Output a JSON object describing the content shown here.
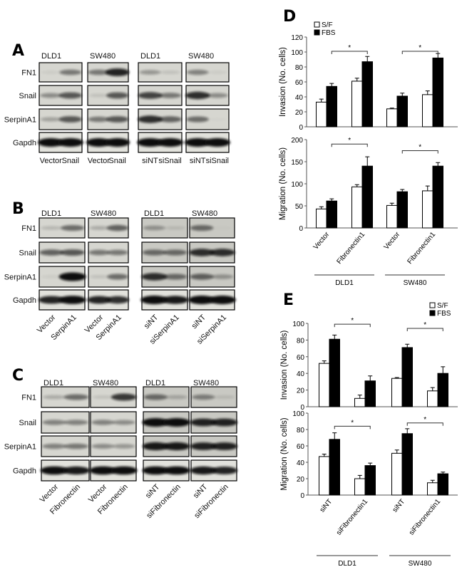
{
  "colors": {
    "sf_fill": "#ffffff",
    "fbs_fill": "#000000",
    "blot_bg": "#d6d6d0",
    "band": "#111111"
  },
  "blots": [
    {
      "letter": "A",
      "rows": [
        "FN1",
        "Snail",
        "SerpinA1",
        "Gapdh"
      ],
      "rotated_labels": false,
      "panels": [
        {
          "cell": "DLD1",
          "lanes": [
            "Vector",
            "Snail"
          ],
          "bands": [
            [
              0.05,
              0.45
            ],
            [
              0.35,
              0.6
            ],
            [
              0.25,
              0.6
            ],
            [
              1,
              1
            ]
          ]
        },
        {
          "cell": "SW480",
          "lanes": [
            "Vector",
            "Snail"
          ],
          "bands": [
            [
              0.45,
              0.85
            ],
            [
              0.1,
              0.6
            ],
            [
              0.45,
              0.6
            ],
            [
              1,
              1
            ]
          ]
        },
        {
          "cell": "DLD1",
          "lanes": [
            "siNT",
            "siSnail"
          ],
          "bands": [
            [
              0.3,
              0.1
            ],
            [
              0.7,
              0.45
            ],
            [
              0.8,
              0.55
            ],
            [
              1,
              1
            ]
          ]
        },
        {
          "cell": "SW480",
          "lanes": [
            "siNT",
            "siSnail"
          ],
          "bands": [
            [
              0.4,
              0.05
            ],
            [
              0.8,
              0.35
            ],
            [
              0.5,
              0.02
            ],
            [
              1,
              1
            ]
          ]
        }
      ]
    },
    {
      "letter": "B",
      "rows": [
        "FN1",
        "Snail",
        "SerpinA1",
        "Gapdh"
      ],
      "rotated_labels": true,
      "panels": [
        {
          "cell": "DLD1",
          "lanes": [
            "Vector",
            "SerpinA1"
          ],
          "bands": [
            [
              0.15,
              0.5
            ],
            [
              0.55,
              0.6
            ],
            [
              0.05,
              1
            ],
            [
              0.85,
              0.95
            ]
          ]
        },
        {
          "cell": "SW480",
          "lanes": [
            "Vector",
            "SerpinA1"
          ],
          "bands": [
            [
              0.2,
              0.55
            ],
            [
              0.45,
              0.45
            ],
            [
              0.1,
              0.5
            ],
            [
              0.85,
              0.8
            ]
          ]
        },
        {
          "cell": "DLD1",
          "lanes": [
            "siNT",
            "siSerpinA1"
          ],
          "bands": [
            [
              0.3,
              0.1
            ],
            [
              0.5,
              0.5
            ],
            [
              0.8,
              0.5
            ],
            [
              1,
              0.9
            ]
          ]
        },
        {
          "cell": "SW480",
          "lanes": [
            "siNT",
            "siSerpinA1"
          ],
          "bands": [
            [
              0.5,
              0.02
            ],
            [
              0.8,
              0.8
            ],
            [
              0.55,
              0.3
            ],
            [
              1,
              1
            ]
          ]
        }
      ]
    },
    {
      "letter": "C",
      "rows": [
        "FN1",
        "Snail",
        "SerpinA1",
        "Gapdh"
      ],
      "rotated_labels": true,
      "panels": [
        {
          "cell": "DLD1",
          "lanes": [
            "Vector",
            "Fibronectin"
          ],
          "bands": [
            [
              0.2,
              0.5
            ],
            [
              0.4,
              0.4
            ],
            [
              0.4,
              0.45
            ],
            [
              0.95,
              0.9
            ]
          ]
        },
        {
          "cell": "SW480",
          "lanes": [
            "Vector",
            "Fibronectin"
          ],
          "bands": [
            [
              0.1,
              0.75
            ],
            [
              0.4,
              0.35
            ],
            [
              0.35,
              0.3
            ],
            [
              0.95,
              0.95
            ]
          ]
        },
        {
          "cell": "DLD1",
          "lanes": [
            "siNT",
            "siFibronectin"
          ],
          "bands": [
            [
              0.5,
              0.2
            ],
            [
              1,
              1
            ],
            [
              0.9,
              0.9
            ],
            [
              0.95,
              0.95
            ]
          ]
        },
        {
          "cell": "SW480",
          "lanes": [
            "siNT",
            "siFibronectin"
          ],
          "bands": [
            [
              0.4,
              0.1
            ],
            [
              0.85,
              0.85
            ],
            [
              0.85,
              0.85
            ],
            [
              0.9,
              0.85
            ]
          ]
        }
      ]
    }
  ],
  "chart_data": [
    {
      "panel": "D",
      "type": "bar",
      "legend": [
        "S/F",
        "FBS"
      ],
      "legend_placement": "top-left",
      "groups": [
        {
          "label": "DLD1",
          "categories": [
            "Vector",
            "Fibronectin1"
          ]
        },
        {
          "label": "SW480",
          "categories": [
            "Vector",
            "Fibronectin1"
          ]
        }
      ],
      "categories": [
        "Vector",
        "Fibronectin1",
        "Vector",
        "Fibronectin1"
      ],
      "subplots": [
        {
          "ylabel": "Invasion  (No. cells)",
          "ylim": [
            0,
            120
          ],
          "yticks": [
            0,
            20,
            40,
            60,
            80,
            100,
            120
          ],
          "series": [
            {
              "name": "S/F",
              "values": [
                33,
                61,
                24,
                43
              ],
              "errors": [
                4,
                4,
                1,
                5
              ]
            },
            {
              "name": "FBS",
              "values": [
                54,
                87,
                41,
                92
              ],
              "errors": [
                4,
                7,
                4,
                6
              ]
            }
          ],
          "significance": [
            {
              "from": 0,
              "to": 1,
              "level": 101,
              "mark": "*"
            },
            {
              "from": 2,
              "to": 3,
              "level": 101,
              "mark": "*"
            }
          ]
        },
        {
          "ylabel": "Migration  (No. cells)",
          "ylim": [
            0,
            200
          ],
          "yticks": [
            0,
            50,
            100,
            150,
            200
          ],
          "series": [
            {
              "name": "S/F",
              "values": [
                43,
                93,
                51,
                84
              ],
              "errors": [
                5,
                5,
                5,
                11
              ]
            },
            {
              "name": "FBS",
              "values": [
                61,
                140,
                82,
                140
              ],
              "errors": [
                5,
                21,
                5,
                8
              ]
            }
          ],
          "significance": [
            {
              "from": 0,
              "to": 1,
              "level": 190,
              "mark": "*"
            },
            {
              "from": 2,
              "to": 3,
              "level": 175,
              "mark": "*"
            }
          ]
        }
      ]
    },
    {
      "panel": "E",
      "type": "bar",
      "legend": [
        "S/F",
        "FBS"
      ],
      "legend_placement": "top-right",
      "groups": [
        {
          "label": "DLD1",
          "categories": [
            "siNT",
            "siFibronectin1"
          ]
        },
        {
          "label": "SW480",
          "categories": [
            "siNT",
            "siFibronectin1"
          ]
        }
      ],
      "categories": [
        "siNT",
        "siFibronectin1",
        "siNT",
        "siFibronectin1"
      ],
      "subplots": [
        {
          "ylabel": "Invasion  (No. cells)",
          "ylim": [
            0,
            100
          ],
          "yticks": [
            0,
            20,
            40,
            60,
            80,
            100
          ],
          "series": [
            {
              "name": "S/F",
              "values": [
                52,
                10,
                34,
                19
              ],
              "errors": [
                3,
                4,
                1,
                4
              ]
            },
            {
              "name": "FBS",
              "values": [
                81,
                31,
                71,
                40
              ],
              "errors": [
                5,
                6,
                4,
                8
              ]
            }
          ],
          "significance": [
            {
              "from": 0,
              "to": 1,
              "level": 99,
              "mark": "*"
            },
            {
              "from": 2,
              "to": 3,
              "level": 94,
              "mark": "*"
            }
          ]
        },
        {
          "ylabel": "Migration  (No. cells)",
          "ylim": [
            0,
            100
          ],
          "yticks": [
            0,
            20,
            40,
            60,
            80,
            100
          ],
          "series": [
            {
              "name": "S/F",
              "values": [
                47,
                20,
                51,
                15
              ],
              "errors": [
                3,
                4,
                4,
                3
              ]
            },
            {
              "name": "FBS",
              "values": [
                68,
                36,
                75,
                26
              ],
              "errors": [
                8,
                3,
                6,
                2
              ]
            }
          ],
          "significance": [
            {
              "from": 0,
              "to": 1,
              "level": 84,
              "mark": "*"
            },
            {
              "from": 2,
              "to": 3,
              "level": 88,
              "mark": "*"
            }
          ]
        }
      ]
    }
  ]
}
